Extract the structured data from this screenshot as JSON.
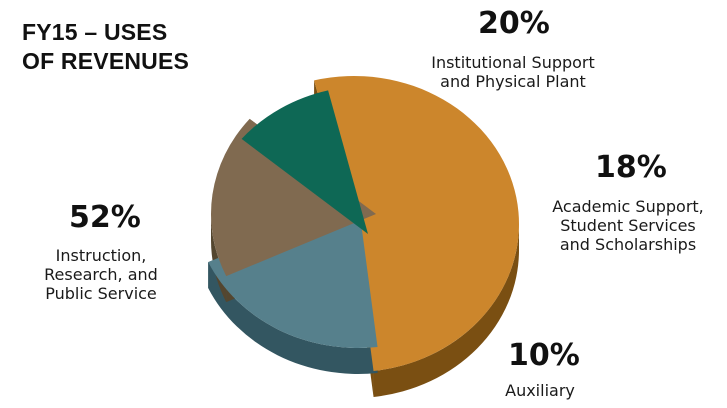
{
  "chart_data": {
    "type": "pie",
    "title_lines": [
      "FY15 – USES",
      "OF REVENUES"
    ],
    "slices": [
      {
        "value": 52,
        "label": "52%",
        "description": [
          "Instruction,",
          "Research, and",
          "Public Service"
        ],
        "color": "#CC862C",
        "side_color": "#7A4F12"
      },
      {
        "value": 20,
        "label": "20%",
        "description": [
          "Institutional Support",
          "and Physical Plant"
        ],
        "color": "#56808C",
        "side_color": "#335661"
      },
      {
        "value": 18,
        "label": "18%",
        "description": [
          "Academic Support,",
          "Student Services",
          "and Scholarships"
        ],
        "color": "#806A50",
        "side_color": "#54462F"
      },
      {
        "value": 10,
        "label": "10%",
        "description": [
          "Auxiliary"
        ],
        "color": "#0E6855",
        "side_color": "#053D32"
      }
    ]
  }
}
